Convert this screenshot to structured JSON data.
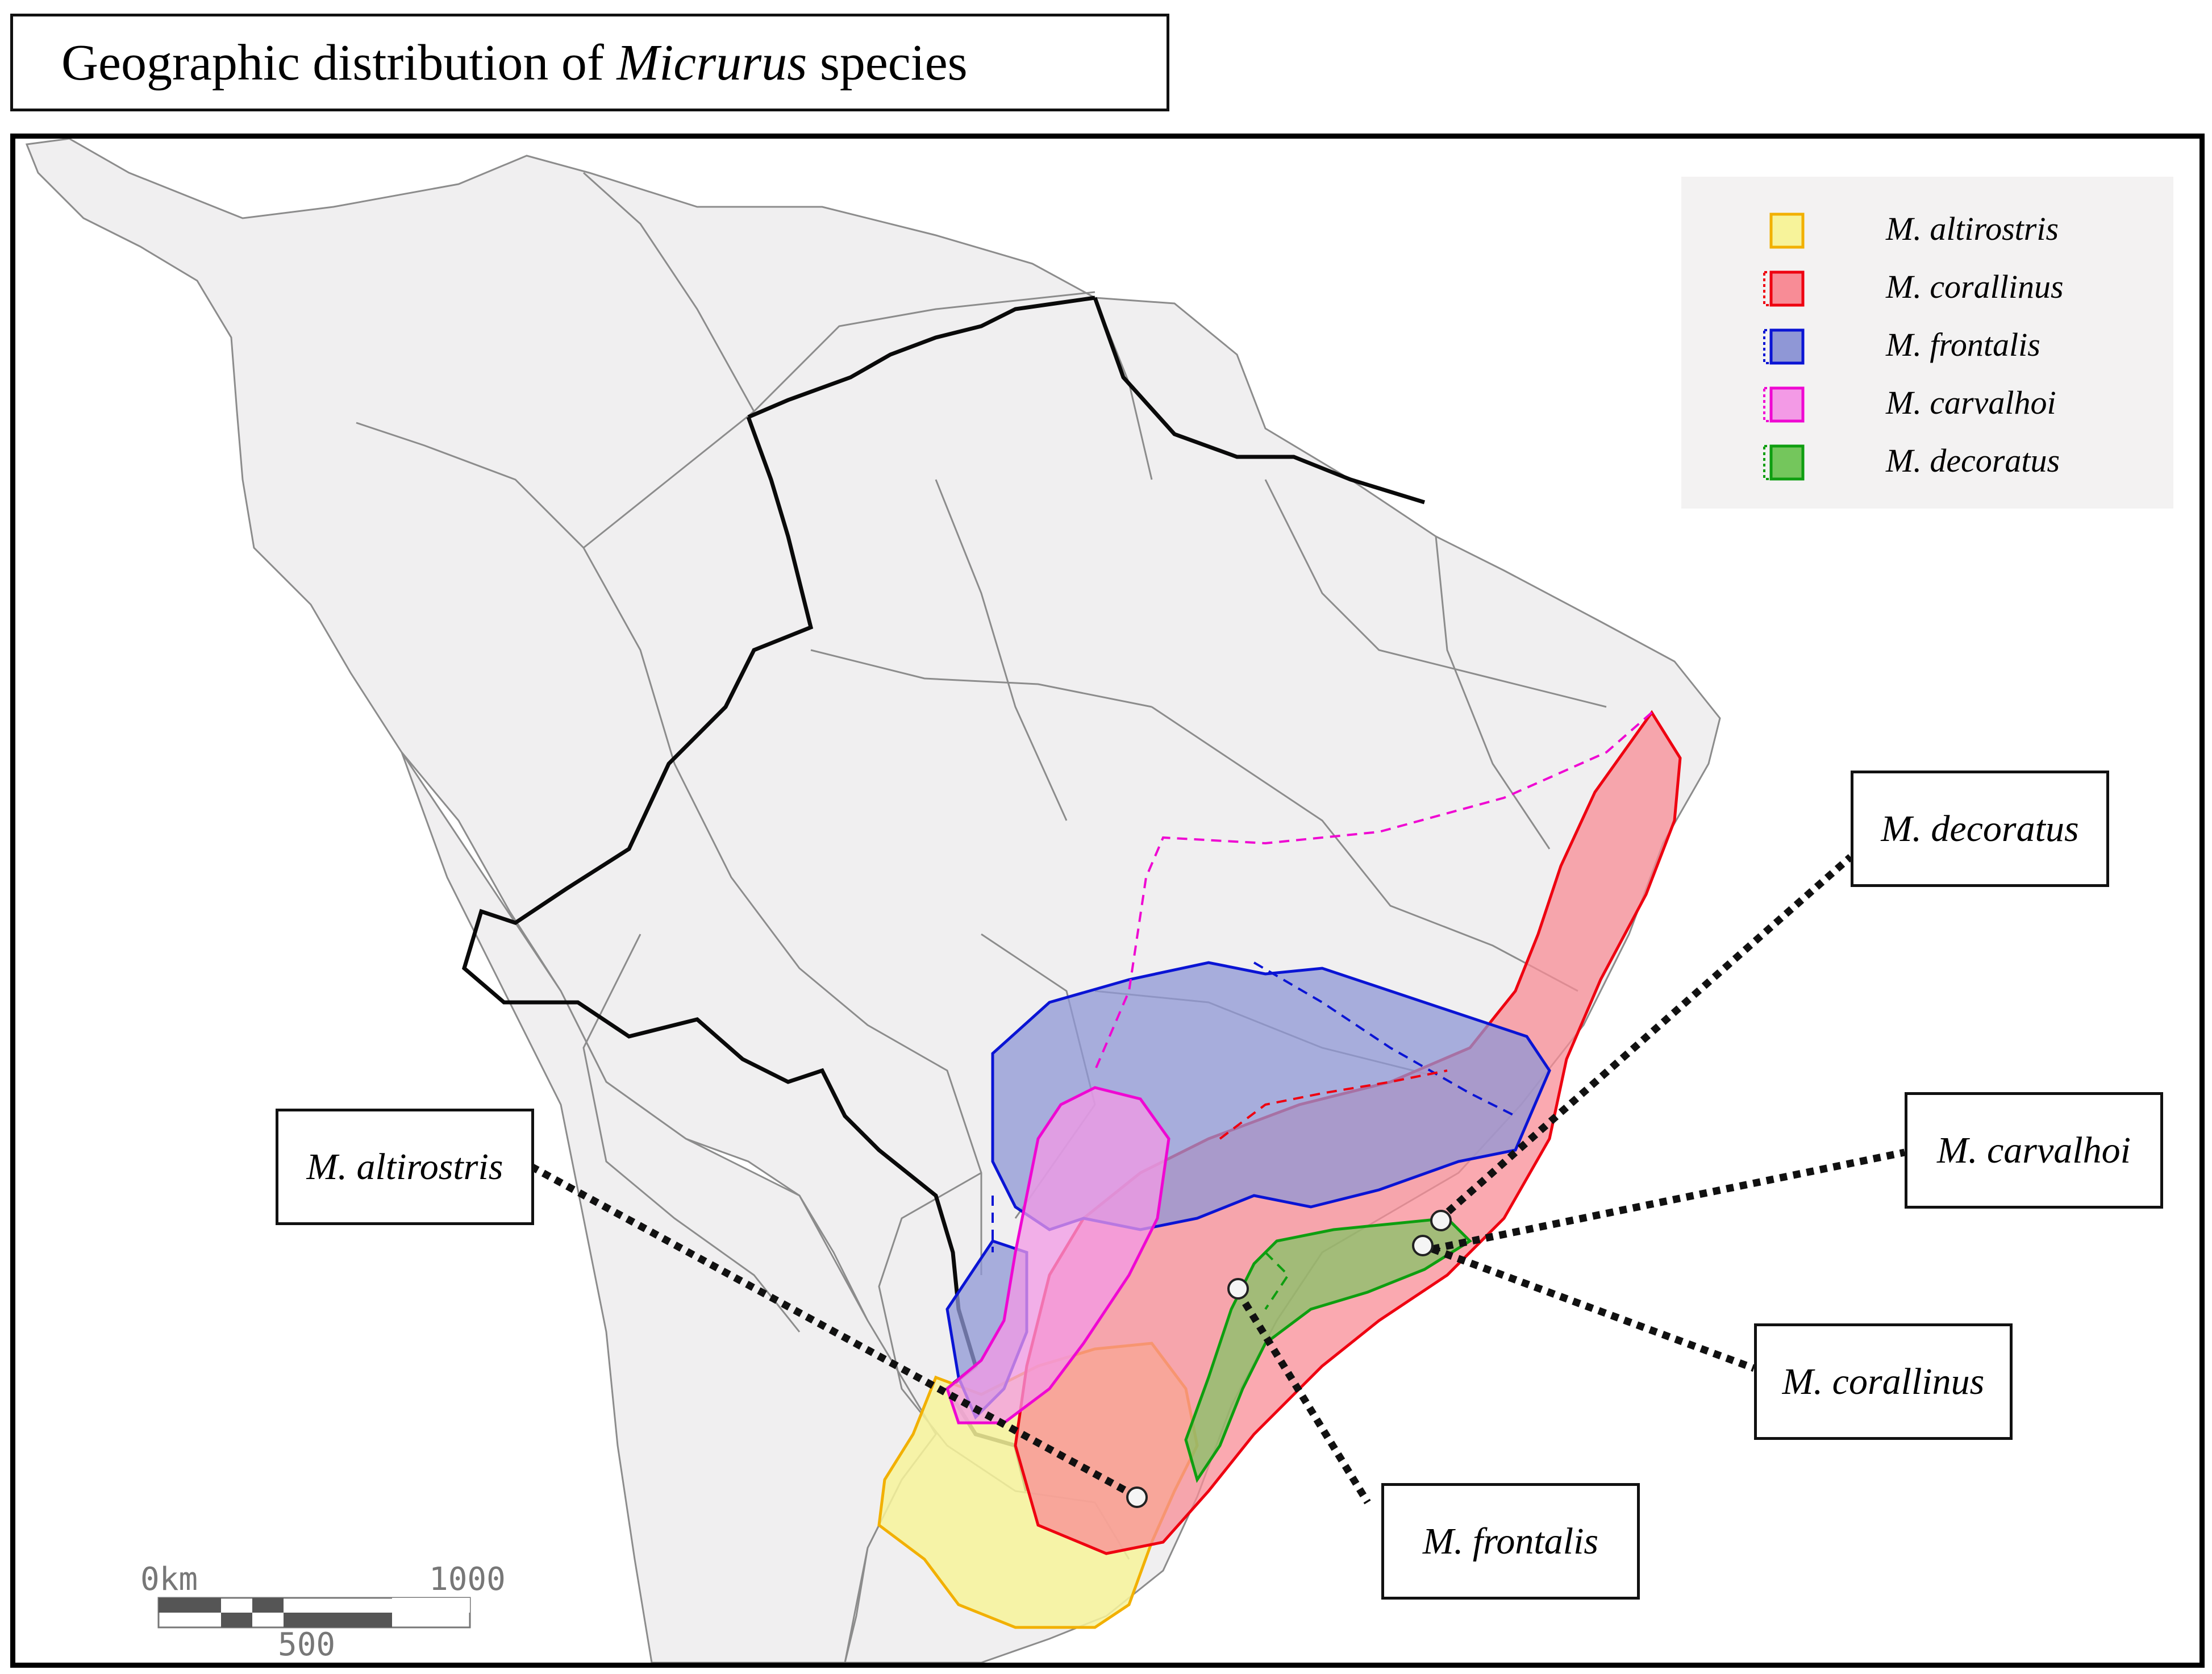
{
  "title": {
    "prefix": "Geographic distribution of ",
    "genus": "Micrurus",
    "suffix": " species"
  },
  "legend": [
    {
      "name": "M. altirostris",
      "fill": "#f7f39a",
      "stroke": "#f2b000",
      "dotted": false
    },
    {
      "name": "M. corallinus",
      "fill": "#f88c96",
      "stroke": "#ee0010",
      "dotted": true
    },
    {
      "name": "M. frontalis",
      "fill": "#8f97d6",
      "stroke": "#0a14d4",
      "dotted": true
    },
    {
      "name": "M. carvalhoi",
      "fill": "#f39ae6",
      "stroke": "#ef08d2",
      "dotted": true
    },
    {
      "name": "M. decoratus",
      "fill": "#74c65c",
      "stroke": "#0e9e10",
      "dotted": true
    }
  ],
  "callouts": {
    "decoratus": "M. decoratus",
    "carvalhoi": "M. carvalhoi",
    "corallinus": "M. corallinus",
    "frontalis": "M. frontalis",
    "altirostris": "M. altirostris"
  },
  "scale_bar": {
    "start_label": "0km",
    "end_label": "1000",
    "mid_label": "500"
  },
  "colors": {
    "land": "#f0eff0",
    "sea": "#ffffff",
    "borders": "#8c8c8c",
    "brazil_border": "#0a0a0a"
  }
}
